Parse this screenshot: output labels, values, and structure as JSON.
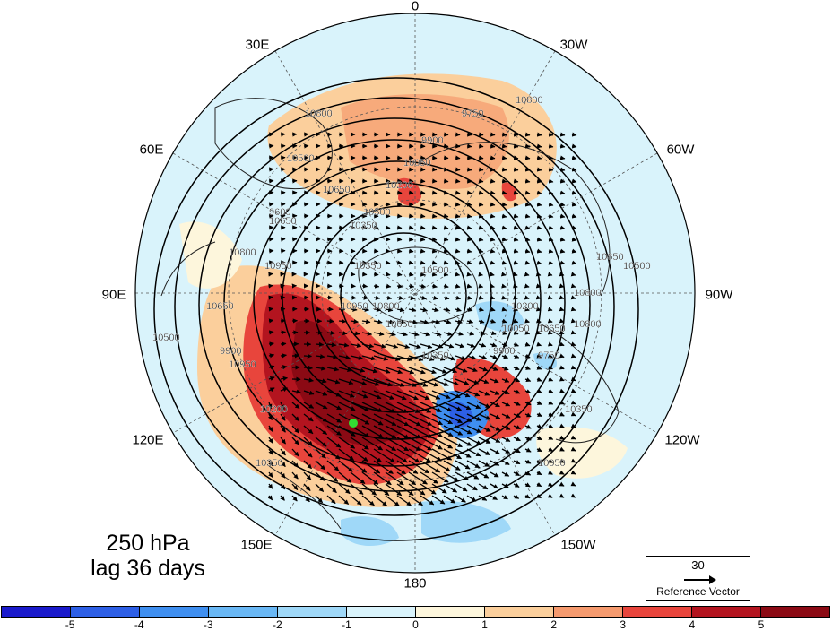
{
  "caption": {
    "level": "250 hPa",
    "lag": "lag 36 days"
  },
  "longitude_labels": {
    "top": "0",
    "bottom": "180",
    "upper_left": "30E",
    "upper_right": "30W",
    "left_upper": "60E",
    "right_upper": "60W",
    "left": "90E",
    "right": "90W",
    "left_lower": "120E",
    "right_lower": "120W",
    "lower_left": "150E",
    "lower_right": "150W"
  },
  "contour_labels": [
    "10800",
    "10650",
    "10500",
    "10350",
    "10200",
    "10050",
    "9900",
    "9750",
    "9600",
    "10950",
    "10800",
    "10650",
    "10500",
    "10350",
    "10800",
    "10950",
    "10650",
    "10500",
    "10350",
    "10200",
    "10050",
    "9900",
    "9750",
    "10650",
    "10800",
    "10800",
    "10650",
    "10500",
    "10350",
    "10050",
    "9900",
    "10200",
    "10350",
    "10500",
    "10650",
    "10800",
    "10950"
  ],
  "reference_vector": {
    "value": "30",
    "label": "Reference Vector"
  },
  "colorbar": {
    "ticks": [
      "-5",
      "-4",
      "-3",
      "-2",
      "-1",
      "0",
      "1",
      "2",
      "3",
      "4",
      "5"
    ],
    "colors": [
      "#1a1acc",
      "#2d5fe6",
      "#3f8ff0",
      "#6ab8f5",
      "#9fd8f8",
      "#d9f3fb",
      "#fdf6dc",
      "#fbcf9c",
      "#f59a6e",
      "#e8453c",
      "#b3141f",
      "#8b0a14"
    ]
  },
  "marker": {
    "color": "#33dd33"
  }
}
